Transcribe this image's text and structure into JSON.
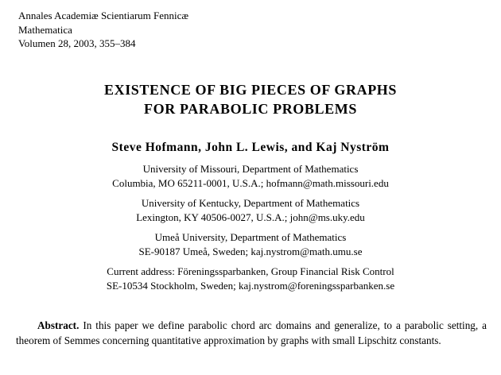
{
  "journal": {
    "name": "Annales Academiæ Scientiarum Fennicæ",
    "series": "Mathematica",
    "volume": "Volumen 28, 2003, 355–384"
  },
  "title": {
    "line1": "EXISTENCE OF BIG PIECES OF GRAPHS",
    "line2": "FOR PARABOLIC PROBLEMS"
  },
  "authors": "Steve Hofmann, John L. Lewis, and Kaj Nyström",
  "affiliations": [
    {
      "line1": "University of Missouri, Department of Mathematics",
      "line2": "Columbia, MO 65211-0001, U.S.A.; hofmann@math.missouri.edu"
    },
    {
      "line1": "University of Kentucky, Department of Mathematics",
      "line2": "Lexington, KY 40506-0027, U.S.A.; john@ms.uky.edu"
    },
    {
      "line1": "Umeå University, Department of Mathematics",
      "line2": "SE-90187 Umeå, Sweden; kaj.nystrom@math.umu.se"
    },
    {
      "line1": "Current address: Föreningssparbanken, Group Financial Risk Control",
      "line2": "SE-10534 Stockholm, Sweden; kaj.nystrom@foreningssparbanken.se"
    }
  ],
  "abstract": {
    "label": "Abstract.",
    "text": "In this paper we define parabolic chord arc domains and generalize, to a parabolic setting, a theorem of Semmes concerning quantitative approximation by graphs with small Lipschitz constants."
  },
  "colors": {
    "background": "#ffffff",
    "text": "#000000"
  }
}
